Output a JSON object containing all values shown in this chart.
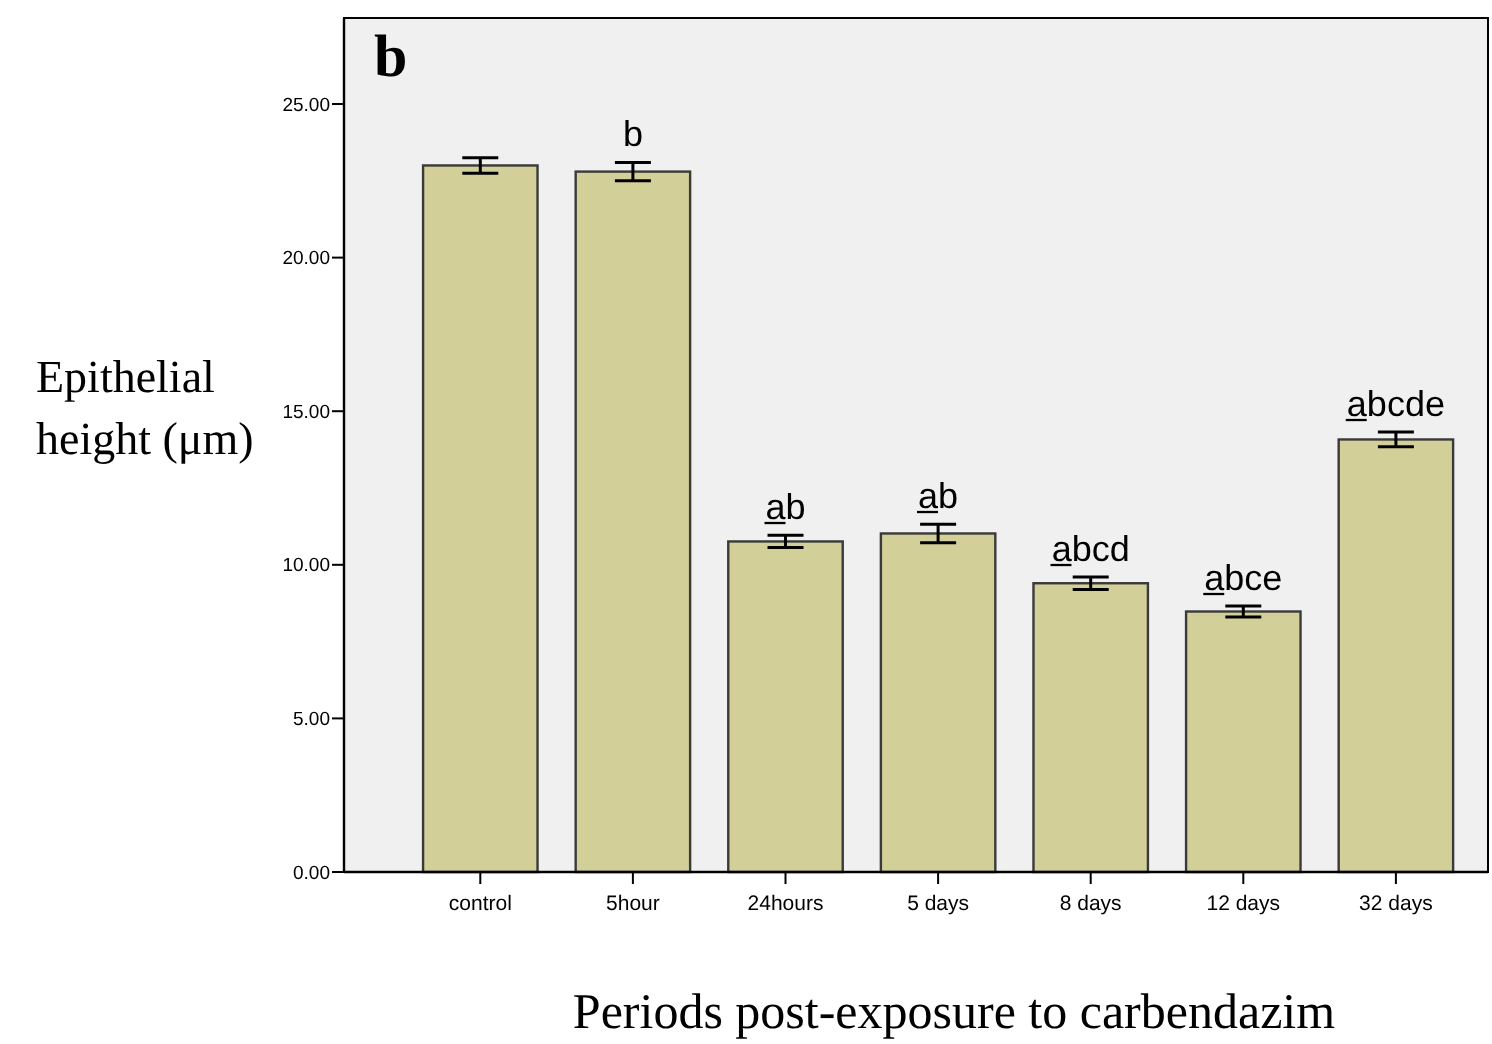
{
  "chart_data": {
    "type": "bar",
    "title": "b",
    "xlabel": "Periods post-exposure to carbendazim",
    "ylabel": "Epithelial height (μm)",
    "categories": [
      "control",
      "5hour",
      "24hours",
      "5 days",
      "8 days",
      "12 days",
      "32 days"
    ],
    "values": [
      23.0,
      22.8,
      10.76,
      11.02,
      9.4,
      8.48,
      14.08
    ],
    "errors": [
      0.25,
      0.3,
      0.2,
      0.3,
      0.2,
      0.18,
      0.24
    ],
    "color": "#d3cf98",
    "ylim": [
      0,
      27.8
    ],
    "yticks": [
      {
        "value": 0,
        "label": "0.00"
      },
      {
        "value": 5,
        "label": "5.00"
      },
      {
        "value": 10,
        "label": "10.00"
      },
      {
        "value": 15,
        "label": "15.00"
      },
      {
        "value": 20,
        "label": "20.00"
      },
      {
        "value": 25,
        "label": "25.00"
      }
    ],
    "annotations": [
      {
        "text": "b",
        "x": "5hour",
        "y": 22.8
      },
      {
        "text": "a̲b",
        "x": "24hours",
        "y": 10.76
      },
      {
        "text": "a̲b",
        "x": "5 days",
        "y": 11.02
      },
      {
        "text": "a̲bcd",
        "x": "8 days",
        "y": 9.4
      },
      {
        "text": "a̲bce",
        "x": "12 days",
        "y": 8.48
      },
      {
        "text": "a̲bcde",
        "x": "32 days",
        "y": 14.08
      }
    ]
  }
}
